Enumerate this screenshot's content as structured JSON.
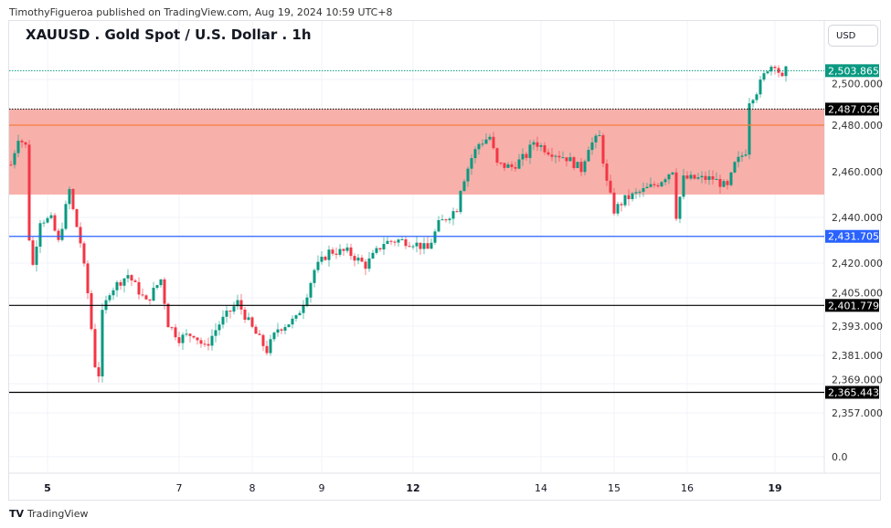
{
  "header": {
    "published": "TimothyFigueroa published on TradingView.com, Aug 19, 2024 10:59 UTC+8",
    "title": "XAUUSD . Gold Spot / U.S. Dollar . 1h",
    "currency": "USD"
  },
  "footer": {
    "brand": "TradingView",
    "logo": "TV"
  },
  "chart_data": {
    "type": "candlestick",
    "title": "XAUUSD . Gold Spot / U.S. Dollar . 1h",
    "y_ticks": [
      2500,
      2480,
      2460,
      2440,
      2420,
      2405,
      2393,
      2381,
      2369,
      2357,
      0
    ],
    "y_tick_labels": [
      "2,500.000",
      "2,480.000",
      "2,460.000",
      "2,440.000",
      "2,420.000",
      "2,405.000",
      "2,393.000",
      "2,381.000",
      "2,369.000",
      "2,357.000",
      "0.0"
    ],
    "x_ticks": [
      {
        "label": "5",
        "bar": 10
      },
      {
        "label": "7",
        "bar": 46
      },
      {
        "label": "8",
        "bar": 66
      },
      {
        "label": "9",
        "bar": 85
      },
      {
        "label": "12",
        "bar": 110
      },
      {
        "label": "14",
        "bar": 145
      },
      {
        "label": "15",
        "bar": 165
      },
      {
        "label": "16",
        "bar": 185
      },
      {
        "label": "19",
        "bar": 209
      }
    ],
    "close_path": [
      [
        0,
        2463
      ],
      [
        2,
        2475
      ],
      [
        4,
        2471
      ],
      [
        5,
        2431
      ],
      [
        6,
        2419
      ],
      [
        8,
        2439
      ],
      [
        11,
        2439
      ],
      [
        13,
        2429
      ],
      [
        16,
        2452
      ],
      [
        17,
        2443
      ],
      [
        19,
        2429
      ],
      [
        21,
        2407
      ],
      [
        23,
        2377
      ],
      [
        24,
        2373
      ],
      [
        25,
        2398
      ],
      [
        27,
        2408
      ],
      [
        32,
        2415
      ],
      [
        37,
        2403
      ],
      [
        41,
        2413
      ],
      [
        43,
        2394
      ],
      [
        46,
        2388
      ],
      [
        50,
        2390
      ],
      [
        53,
        2384
      ],
      [
        57,
        2394
      ],
      [
        62,
        2403
      ],
      [
        66,
        2392
      ],
      [
        70,
        2383
      ],
      [
        73,
        2392
      ],
      [
        78,
        2396
      ],
      [
        81,
        2407
      ],
      [
        83,
        2417
      ],
      [
        87,
        2425
      ],
      [
        92,
        2425
      ],
      [
        97,
        2419
      ],
      [
        102,
        2429
      ],
      [
        106,
        2430
      ],
      [
        110,
        2429
      ],
      [
        114,
        2426
      ],
      [
        117,
        2437
      ],
      [
        122,
        2444
      ],
      [
        123,
        2453
      ],
      [
        126,
        2466
      ],
      [
        128,
        2472
      ],
      [
        131,
        2475
      ],
      [
        133,
        2463
      ],
      [
        137,
        2462
      ],
      [
        141,
        2467
      ],
      [
        143,
        2473
      ],
      [
        147,
        2469
      ],
      [
        152,
        2466
      ],
      [
        156,
        2461
      ],
      [
        158,
        2471
      ],
      [
        161,
        2475
      ],
      [
        163,
        2455
      ],
      [
        165,
        2443
      ],
      [
        168,
        2448
      ],
      [
        172,
        2451
      ],
      [
        177,
        2455
      ],
      [
        181,
        2461
      ],
      [
        182,
        2441
      ],
      [
        184,
        2457
      ],
      [
        188,
        2457
      ],
      [
        192,
        2457
      ],
      [
        196,
        2453
      ],
      [
        198,
        2463
      ],
      [
        201,
        2469
      ],
      [
        202,
        2491
      ],
      [
        204,
        2495
      ],
      [
        207,
        2505
      ],
      [
        209,
        2507
      ],
      [
        211,
        2500
      ],
      [
        212,
        2503.865
      ]
    ],
    "levels": [
      {
        "name": "last-price",
        "value": 2503.865,
        "label": "2,503.865",
        "color": "#089981",
        "style": "dotted"
      },
      {
        "name": "zone-top",
        "value": 2487.026,
        "label": "2,487.026",
        "color": "#000000",
        "style": "dotted"
      },
      {
        "name": "orange-line",
        "value": 2480,
        "label": "",
        "color": "#f57c3a",
        "style": "solid"
      },
      {
        "name": "support-blue",
        "value": 2431.705,
        "label": "2,431.705",
        "color": "#2962ff",
        "style": "solid"
      },
      {
        "name": "support-1",
        "value": 2401.779,
        "label": "2,401.779",
        "color": "#000000",
        "style": "solid"
      },
      {
        "name": "support-2",
        "value": 2365.443,
        "label": "2,365.443",
        "color": "#000000",
        "style": "solid"
      }
    ],
    "zone": {
      "from": 2450,
      "to": 2487.026,
      "color": "#f8b0aa"
    },
    "colors": {
      "up": "#089981",
      "down": "#f23645"
    }
  }
}
